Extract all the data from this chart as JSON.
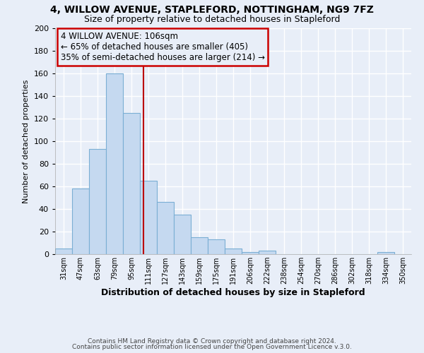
{
  "title": "4, WILLOW AVENUE, STAPLEFORD, NOTTINGHAM, NG9 7FZ",
  "subtitle": "Size of property relative to detached houses in Stapleford",
  "xlabel": "Distribution of detached houses by size in Stapleford",
  "ylabel": "Number of detached properties",
  "bar_labels": [
    "31sqm",
    "47sqm",
    "63sqm",
    "79sqm",
    "95sqm",
    "111sqm",
    "127sqm",
    "143sqm",
    "159sqm",
    "175sqm",
    "191sqm",
    "206sqm",
    "222sqm",
    "238sqm",
    "254sqm",
    "270sqm",
    "286sqm",
    "302sqm",
    "318sqm",
    "334sqm",
    "350sqm"
  ],
  "bar_values": [
    5,
    58,
    93,
    160,
    125,
    65,
    46,
    35,
    15,
    13,
    5,
    2,
    3,
    0,
    0,
    0,
    0,
    0,
    0,
    2,
    0
  ],
  "bar_color": "#c5d9f0",
  "bar_edge_color": "#7bafd4",
  "vline_x_index": 4.69,
  "vline_color": "#bb0000",
  "ylim": [
    0,
    200
  ],
  "yticks": [
    0,
    20,
    40,
    60,
    80,
    100,
    120,
    140,
    160,
    180,
    200
  ],
  "annotation_title": "4 WILLOW AVENUE: 106sqm",
  "annotation_line1": "← 65% of detached houses are smaller (405)",
  "annotation_line2": "35% of semi-detached houses are larger (214) →",
  "annotation_box_color": "#cc0000",
  "footer_line1": "Contains HM Land Registry data © Crown copyright and database right 2024.",
  "footer_line2": "Contains public sector information licensed under the Open Government Licence v.3.0.",
  "background_color": "#e8eef8",
  "grid_color": "#d0d8e8",
  "title_fontsize": 10,
  "subtitle_fontsize": 9
}
